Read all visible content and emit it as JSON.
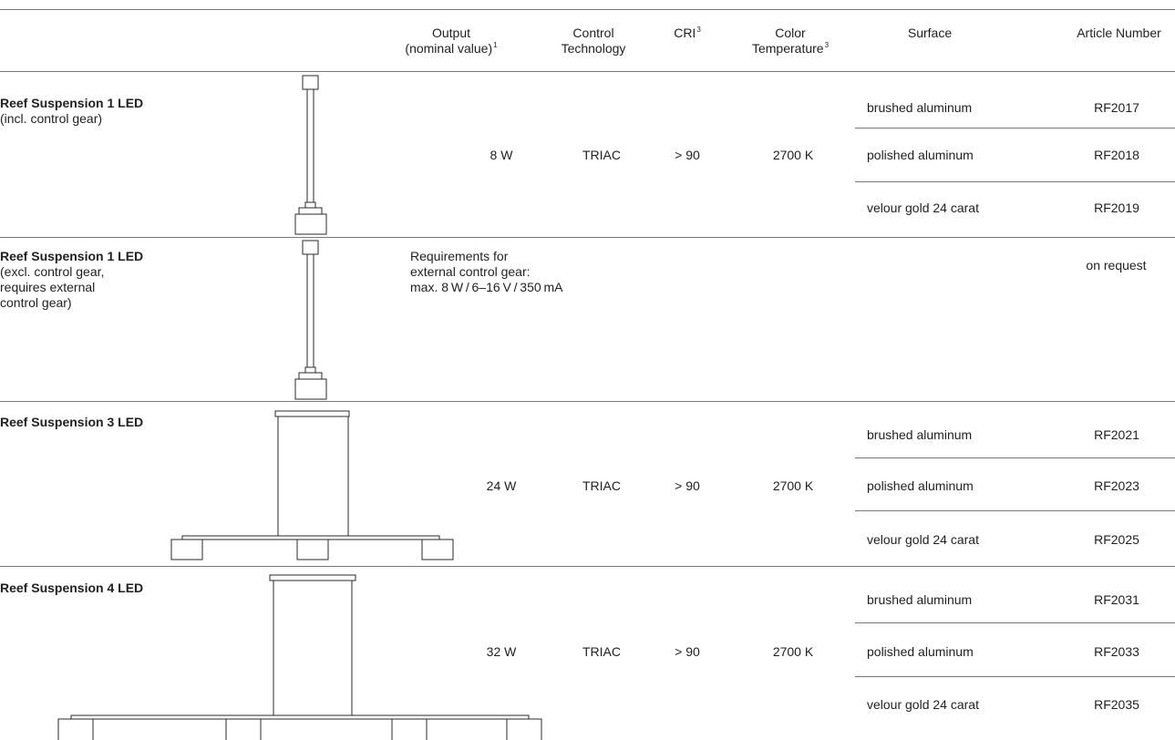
{
  "headers": {
    "output": [
      "Output",
      "(nominal value)",
      "1"
    ],
    "control": [
      "Control",
      "Technology"
    ],
    "cri": [
      "CRI",
      "3"
    ],
    "color_temp": [
      "Color",
      "Temperature",
      "3"
    ],
    "surface": "Surface",
    "article": "Article Number"
  },
  "products": [
    {
      "title": "Reef Suspension 1 LED",
      "note_lines": [
        "(incl. control gear)"
      ],
      "output": "8 W",
      "control": "TRIAC",
      "cri": "> 90",
      "color_temp": "2700 K",
      "variants": [
        {
          "surface": "brushed aluminum",
          "article": "RF2017"
        },
        {
          "surface": "polished aluminum",
          "article": "RF2018"
        },
        {
          "surface": "velour gold 24 carat",
          "article": "RF2019"
        }
      ]
    },
    {
      "title": "Reef Suspension 1 LED",
      "note_lines": [
        "(excl. control gear,",
        "requires external",
        "control gear)"
      ],
      "requirements": [
        "Requirements for",
        "external control gear:",
        "max. 8 W / 6–16 V / 350 mA"
      ],
      "article": "on request"
    },
    {
      "title": "Reef Suspension 3 LED",
      "output": "24 W",
      "control": "TRIAC",
      "cri": "> 90",
      "color_temp": "2700 K",
      "variants": [
        {
          "surface": "brushed aluminum",
          "article": "RF2021"
        },
        {
          "surface": "polished aluminum",
          "article": "RF2023"
        },
        {
          "surface": "velour gold 24 carat",
          "article": "RF2025"
        }
      ]
    },
    {
      "title": "Reef Suspension 4 LED",
      "output": "32 W",
      "control": "TRIAC",
      "cri": "> 90",
      "color_temp": "2700 K",
      "variants": [
        {
          "surface": "brushed aluminum",
          "article": "RF2031"
        },
        {
          "surface": "polished aluminum",
          "article": "RF2033"
        },
        {
          "surface": "velour gold 24 carat",
          "article": "RF2035"
        }
      ]
    }
  ]
}
